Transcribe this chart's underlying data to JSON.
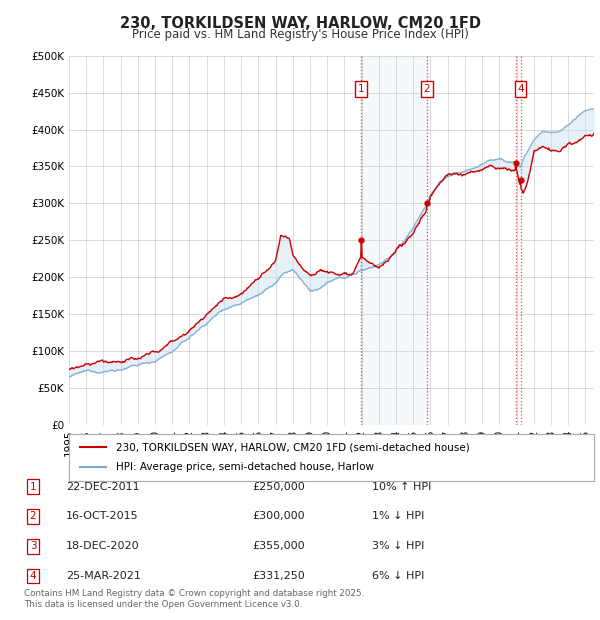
{
  "title": "230, TORKILDSEN WAY, HARLOW, CM20 1FD",
  "subtitle": "Price paid vs. HM Land Registry's House Price Index (HPI)",
  "ylim": [
    0,
    500000
  ],
  "xlim_start": 1995.0,
  "xlim_end": 2025.5,
  "legend_line1": "230, TORKILDSEN WAY, HARLOW, CM20 1FD (semi-detached house)",
  "legend_line2": "HPI: Average price, semi-detached house, Harlow",
  "transactions": [
    {
      "num": 1,
      "date": "22-DEC-2011",
      "price": "£250,000",
      "rel": "10% ↑ HPI",
      "x": 2011.97
    },
    {
      "num": 2,
      "date": "16-OCT-2015",
      "price": "£300,000",
      "rel": "1% ↓ HPI",
      "x": 2015.79
    },
    {
      "num": 3,
      "date": "18-DEC-2020",
      "price": "£355,000",
      "rel": "3% ↓ HPI",
      "x": 2020.97
    },
    {
      "num": 4,
      "date": "25-MAR-2021",
      "price": "£331,250",
      "rel": "6% ↓ HPI",
      "x": 2021.23
    }
  ],
  "transaction_prices": [
    250000,
    300000,
    355000,
    331250
  ],
  "footer": "Contains HM Land Registry data © Crown copyright and database right 2025.\nThis data is licensed under the Open Government Licence v3.0.",
  "hpi_color": "#7aa8d2",
  "price_color": "#cc0000",
  "shade_color": "#c8dff0",
  "grid_color": "#cccccc",
  "bg_color": "#ffffff"
}
